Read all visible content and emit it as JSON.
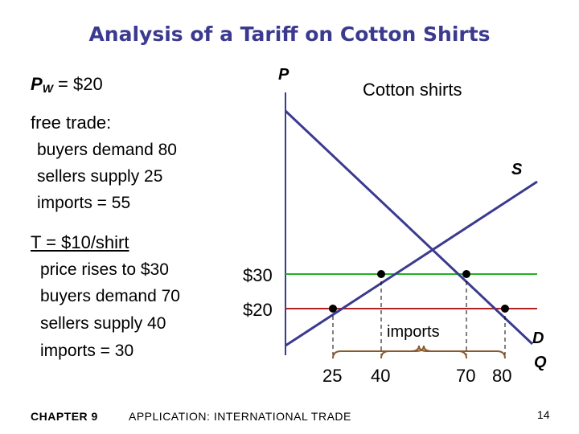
{
  "title": "Analysis of a Tariff on Cotton Shirts",
  "world_price": {
    "symbol": "P",
    "subscript": "W",
    "rest": " = $20"
  },
  "free_trade": {
    "heading": "free trade:",
    "lines": [
      "buyers demand 80",
      "sellers supply 25",
      "imports = 55"
    ]
  },
  "tariff": {
    "heading": "T = $10/shirt",
    "lines": [
      "price rises to $30",
      "buyers demand 70",
      "sellers supply 40",
      "imports = 30"
    ]
  },
  "diagram": {
    "caption": "Cotton shirts",
    "y_axis_label": "P",
    "x_axis_label": "Q",
    "supply_label": "S",
    "demand_label": "D",
    "price_labels": [
      "$30",
      "$20"
    ],
    "quantity_labels": [
      "25",
      "40",
      "70",
      "80"
    ],
    "imports_label": "imports",
    "colors": {
      "axis": "#3b3a8f",
      "curve": "#3b3a8f",
      "price30": "#22b322",
      "price20": "#b22222",
      "brace": "#8b5a2b"
    }
  },
  "footer": {
    "chapter": "CHAPTER 9",
    "subtitle": "APPLICATION: INTERNATIONAL TRADE",
    "page": "14"
  }
}
